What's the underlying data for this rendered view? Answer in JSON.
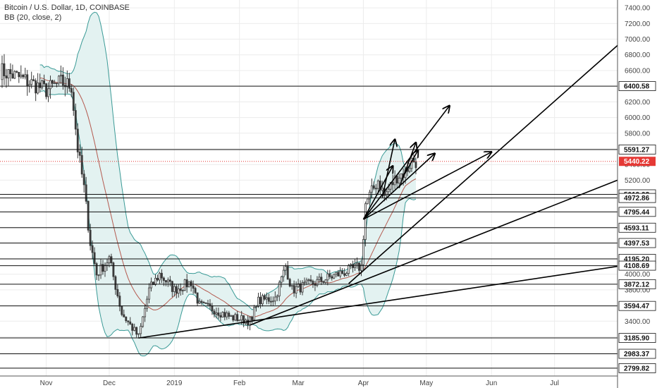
{
  "header": {
    "title": "Bitcoin / U.S. Dollar, 1D, COINBASE",
    "indicator": "BB (20, close, 2)"
  },
  "chart_data": {
    "type": "candlestick",
    "price_axis": {
      "ylim": [
        2700,
        7500
      ],
      "ticks": [
        2800,
        3000,
        3200,
        3400,
        3600,
        3800,
        4000,
        4200,
        4400,
        4600,
        4800,
        5000,
        5200,
        5400,
        5600,
        5800,
        6000,
        6200,
        6400,
        6600,
        6800,
        7000,
        7200,
        7400
      ],
      "tick_labels": [
        "2800.00",
        "3000.00",
        "3200.00",
        "3400.00",
        "3600.00",
        "3800.00",
        "4000.00",
        "4200.00",
        "4400.00",
        "4600.00",
        "4800.00",
        "5000.00",
        "5200.00",
        "5400.00",
        "5600.00",
        "5800.00",
        "6000.00",
        "6200.00",
        "6400.00",
        "6600.00",
        "6800.00",
        "7000.00",
        "7200.00",
        "7400.00"
      ]
    },
    "time_axis": {
      "xlim": [
        "2018-10-10",
        "2019-07-31"
      ],
      "ticks": [
        {
          "date": "2018-11-01",
          "label": "Nov"
        },
        {
          "date": "2018-12-01",
          "label": "Dec"
        },
        {
          "date": "2019-01-01",
          "label": "2019"
        },
        {
          "date": "2019-02-01",
          "label": "Feb"
        },
        {
          "date": "2019-03-01",
          "label": "Mar"
        },
        {
          "date": "2019-04-01",
          "label": "Apr"
        },
        {
          "date": "2019-05-01",
          "label": "May"
        },
        {
          "date": "2019-06-01",
          "label": "Jun"
        },
        {
          "date": "2019-07-01",
          "label": "Jul"
        }
      ]
    },
    "horizontal_levels": [
      {
        "value": 6400.58,
        "label": "6400.58"
      },
      {
        "value": 5591.27,
        "label": "5591.27"
      },
      {
        "value": 5019.02,
        "label": "5019.02"
      },
      {
        "value": 4972.86,
        "label": "4972.86"
      },
      {
        "value": 4795.44,
        "label": "4795.44"
      },
      {
        "value": 4593.11,
        "label": "4593.11"
      },
      {
        "value": 4397.53,
        "label": "4397.53"
      },
      {
        "value": 4195.2,
        "label": "4195.20"
      },
      {
        "value": 4108.69,
        "label": "4108.69"
      },
      {
        "value": 3872.12,
        "label": "3872.12"
      },
      {
        "value": 3594.47,
        "label": "3594.47"
      },
      {
        "value": 3185.9,
        "label": "3185.90"
      },
      {
        "value": 2983.37,
        "label": "2983.37"
      },
      {
        "value": 2799.82,
        "label": "2799.82"
      }
    ],
    "last_price": {
      "value": 5440.22,
      "label": "5440.22",
      "color": "#e53935"
    },
    "trend_lines": [
      {
        "from": {
          "date": "2018-12-15",
          "price": 3185
        },
        "to": {
          "date": "2019-07-31",
          "price": 4100
        }
      },
      {
        "from": {
          "date": "2019-02-06",
          "price": 3350
        },
        "to": {
          "date": "2019-07-31",
          "price": 5200
        }
      },
      {
        "from": {
          "date": "2019-03-25",
          "price": 3880
        },
        "to": {
          "date": "2019-07-31",
          "price": 6920
        }
      }
    ],
    "arrows": [
      {
        "from": {
          "date": "2019-04-01",
          "price": 4700
        },
        "to": {
          "date": "2019-05-12",
          "price": 6150
        }
      },
      {
        "from": {
          "date": "2019-04-01",
          "price": 4700
        },
        "to": {
          "date": "2019-05-05",
          "price": 5540
        }
      },
      {
        "from": {
          "date": "2019-04-01",
          "price": 4700
        },
        "to": {
          "date": "2019-06-01",
          "price": 5560
        }
      },
      {
        "from": {
          "date": "2019-04-01",
          "price": 4700
        },
        "to": {
          "date": "2019-04-15",
          "price": 5380
        }
      },
      {
        "from": {
          "date": "2019-04-10",
          "price": 4980
        },
        "to": {
          "date": "2019-04-16",
          "price": 5720
        }
      },
      {
        "from": {
          "date": "2019-04-18",
          "price": 5100
        },
        "to": {
          "date": "2019-04-26",
          "price": 5680
        }
      },
      {
        "from": {
          "date": "2019-04-20",
          "price": 5250
        },
        "to": {
          "date": "2019-04-27",
          "price": 5580
        }
      }
    ],
    "colors": {
      "up": "#26a69a",
      "down": "#ef5350",
      "candle": "#3a3a3a",
      "bb_fill": "#e3f2f1",
      "bb_line": "#3a9a96",
      "bb_basis": "#b45a4f",
      "grid": "#ececec",
      "level": "#111111"
    }
  }
}
